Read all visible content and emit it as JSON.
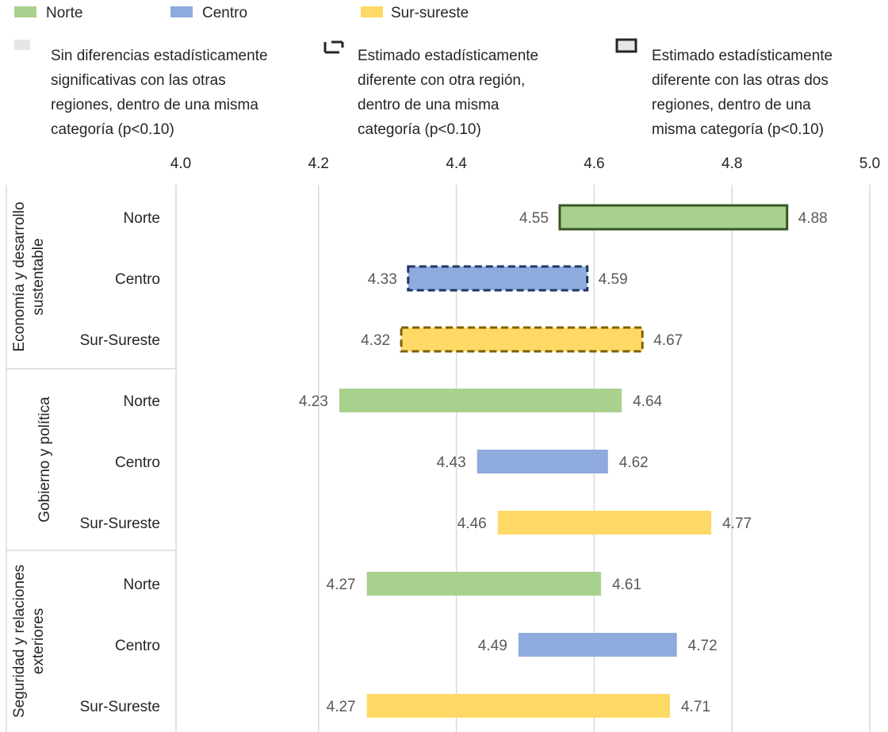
{
  "legend": {
    "series": [
      {
        "name": "Norte",
        "color": "#a9d18e"
      },
      {
        "name": "Centro",
        "color": "#8faadc"
      },
      {
        "name": "Sur-sureste",
        "color": "#ffd966"
      }
    ],
    "styles": [
      {
        "key": "none",
        "lines": [
          "Sin diferencias estadísticamente",
          "significativas con las otras",
          "regiones, dentro de una misma",
          "categoría (p<0.10)"
        ]
      },
      {
        "key": "dashed",
        "lines": [
          "Estimado estadísticamente",
          "diferente con otra región,",
          "dentro de una misma",
          "categoría (p<0.10)"
        ]
      },
      {
        "key": "solid",
        "lines": [
          "Estimado estadísticamente",
          "diferente con las otras dos",
          "regiones, dentro de una",
          "misma categoría (p<0.10)"
        ]
      }
    ]
  },
  "chart_data": {
    "type": "bar",
    "orientation": "horizontal-floating-range",
    "x_ticks": [
      "4.0",
      "4.2",
      "4.4",
      "4.6",
      "4.8",
      "5.0"
    ],
    "xlim": [
      4.0,
      5.0
    ],
    "grid": true,
    "groups": [
      {
        "label_lines": [
          "Economía y desarrollo",
          "sustentable"
        ],
        "rows": [
          {
            "label": "Norte",
            "low": 4.55,
            "high": 4.88,
            "low_label": "4.55",
            "high_label": "4.88",
            "color": "#a9d18e",
            "border": "solid",
            "border_color": "#375623"
          },
          {
            "label": "Centro",
            "low": 4.33,
            "high": 4.59,
            "low_label": "4.33",
            "high_label": "4.59",
            "color": "#8faadc",
            "border": "dashed",
            "border_color": "#1f3864"
          },
          {
            "label": "Sur-Sureste",
            "low": 4.32,
            "high": 4.67,
            "low_label": "4.32",
            "high_label": "4.67",
            "color": "#ffd966",
            "border": "dashed",
            "border_color": "#7f6000"
          }
        ]
      },
      {
        "label_lines": [
          "Gobierno y política"
        ],
        "rows": [
          {
            "label": "Norte",
            "low": 4.23,
            "high": 4.64,
            "low_label": "4.23",
            "high_label": "4.64",
            "color": "#a9d18e",
            "border": "none"
          },
          {
            "label": "Centro",
            "low": 4.43,
            "high": 4.62,
            "low_label": "4.43",
            "high_label": "4.62",
            "color": "#8faadc",
            "border": "none"
          },
          {
            "label": "Sur-Sureste",
            "low": 4.46,
            "high": 4.77,
            "low_label": "4.46",
            "high_label": "4.77",
            "color": "#ffd966",
            "border": "none"
          }
        ]
      },
      {
        "label_lines": [
          "Seguridad y relaciones",
          "exteriores"
        ],
        "rows": [
          {
            "label": "Norte",
            "low": 4.27,
            "high": 4.61,
            "low_label": "4.27",
            "high_label": "4.61",
            "color": "#a9d18e",
            "border": "none"
          },
          {
            "label": "Centro",
            "low": 4.49,
            "high": 4.72,
            "low_label": "4.49",
            "high_label": "4.72",
            "color": "#8faadc",
            "border": "none"
          },
          {
            "label": "Sur-Sureste",
            "low": 4.27,
            "high": 4.71,
            "low_label": "4.27",
            "high_label": "4.71",
            "color": "#ffd966",
            "border": "none"
          }
        ]
      }
    ]
  }
}
